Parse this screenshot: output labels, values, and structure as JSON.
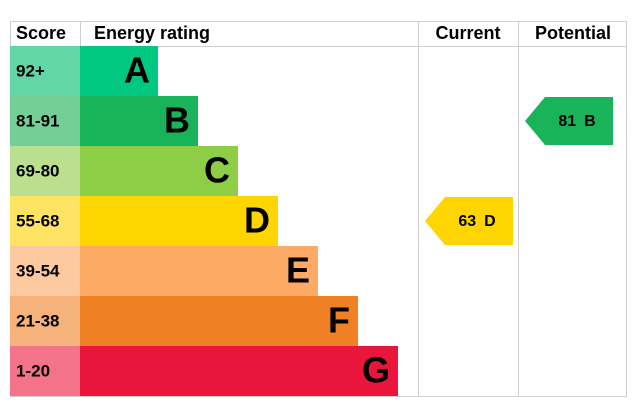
{
  "chart_data": {
    "type": "epc",
    "headers": {
      "score": "Score",
      "rating": "Energy rating",
      "current": "Current",
      "potential": "Potential"
    },
    "bands": [
      {
        "score": "92+",
        "letter": "A",
        "color": "#00c781",
        "score_color": "#63d6a6"
      },
      {
        "score": "81-91",
        "letter": "B",
        "color": "#19b459",
        "score_color": "#74cf97"
      },
      {
        "score": "69-80",
        "letter": "C",
        "color": "#8dce46",
        "score_color": "#badf8e"
      },
      {
        "score": "55-68",
        "letter": "D",
        "color": "#ffd500",
        "score_color": "#ffe463"
      },
      {
        "score": "39-54",
        "letter": "E",
        "color": "#fcaa65",
        "score_color": "#fdcaa0"
      },
      {
        "score": "21-38",
        "letter": "F",
        "color": "#ef8023",
        "score_color": "#f5b27a"
      },
      {
        "score": "1-20",
        "letter": "G",
        "color": "#e9153b",
        "score_color": "#f2738a"
      }
    ],
    "current": {
      "value": 63,
      "letter": "D"
    },
    "potential": {
      "value": 81,
      "letter": "B"
    }
  }
}
